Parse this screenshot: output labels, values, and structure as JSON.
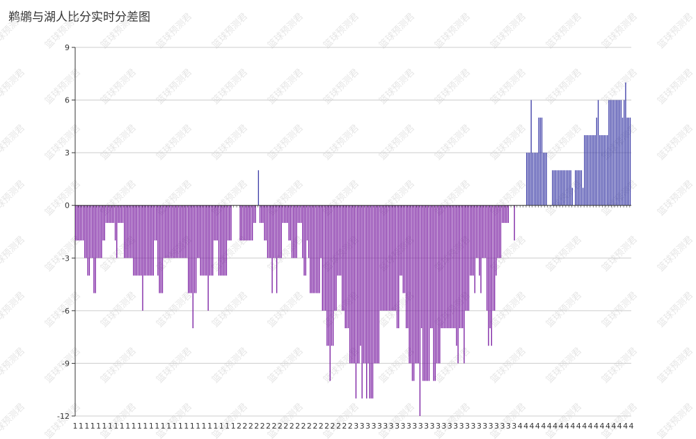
{
  "chart_data": {
    "type": "bar",
    "title": "鹈鹕与湖人比分实时分差图",
    "xlabel": "",
    "ylabel": "",
    "ylim": [
      -12,
      9
    ],
    "yticks": [
      9,
      6,
      3,
      0,
      -3,
      -6,
      -9,
      -12
    ],
    "grid": true,
    "legend": "none",
    "watermark": "篮球预测君",
    "colors": {
      "negative": "#7b1fa2",
      "positive": "#3f3fa8",
      "grid": "#cccccc",
      "axis": "#333333"
    },
    "xticks": [
      "1",
      "1",
      "1",
      "1",
      "1",
      "1",
      "1",
      "1",
      "1",
      "1",
      "1",
      "1",
      "1",
      "1",
      "1",
      "1",
      "1",
      "1",
      "1",
      "1",
      "1",
      "1",
      "1",
      "1",
      "1",
      "1",
      "1",
      "1",
      "2",
      "2",
      "2",
      "2",
      "2",
      "2",
      "2",
      "2",
      "2",
      "2",
      "2",
      "2",
      "2",
      "2",
      "2",
      "2",
      "2",
      "2",
      "2",
      "2",
      "3",
      "3",
      "3",
      "3",
      "3",
      "3",
      "3",
      "3",
      "3",
      "3",
      "3",
      "3",
      "3",
      "3",
      "3",
      "3",
      "3",
      "3",
      "3",
      "3",
      "3",
      "3",
      "3",
      "3",
      "3",
      "3",
      "3",
      "3",
      "4",
      "4",
      "4",
      "4",
      "4",
      "4",
      "4",
      "4",
      "4",
      "4",
      "4",
      "4",
      "4",
      "4",
      "4",
      "4",
      "4",
      "4",
      "4",
      "4"
    ],
    "values": [
      -2,
      -2,
      -2,
      -2,
      -2,
      -2,
      -3,
      -3,
      -4,
      -4,
      -3,
      -3,
      -5,
      -5,
      -3,
      -3,
      -3,
      -3,
      -2,
      -2,
      -1,
      -1,
      -1,
      -1,
      -1,
      -1,
      -2,
      -3,
      -1,
      -1,
      -1,
      -1,
      -3,
      -3,
      -3,
      -3,
      -3,
      -3,
      -4,
      -4,
      -4,
      -4,
      -4,
      -4,
      -6,
      -4,
      -4,
      -4,
      -4,
      -4,
      -4,
      -4,
      -2,
      -2,
      -4,
      -5,
      -5,
      -5,
      -3,
      -3,
      -3,
      -3,
      -3,
      -3,
      -3,
      -3,
      -3,
      -3,
      -3,
      -3,
      -3,
      -3,
      -3,
      -3,
      -5,
      -5,
      -5,
      -7,
      -5,
      -5,
      -3,
      -3,
      -4,
      -4,
      -4,
      -4,
      -4,
      -6,
      -4,
      -4,
      -4,
      -2,
      -2,
      -2,
      -4,
      -4,
      -4,
      -4,
      -4,
      -4,
      -2,
      -2,
      -2,
      0,
      0,
      0,
      0,
      0,
      -2,
      -2,
      -2,
      -2,
      -2,
      -2,
      -2,
      -2,
      -2,
      -1,
      -1,
      0,
      2,
      -1,
      -1,
      -1,
      -2,
      -2,
      -3,
      -3,
      -3,
      -5,
      -3,
      -3,
      -5,
      -3,
      -3,
      -3,
      -1,
      -1,
      -1,
      -1,
      -2,
      -2,
      -3,
      -3,
      -3,
      -3,
      -1,
      -1,
      -1,
      -3,
      -4,
      -4,
      -2,
      -3,
      -5,
      -5,
      -5,
      -5,
      -5,
      -5,
      -5,
      -3,
      -6,
      -6,
      -6,
      -8,
      -8,
      -10,
      -8,
      -8,
      -6,
      -6,
      -4,
      -4,
      -4,
      -6,
      -6,
      -7,
      -7,
      -7,
      -9,
      -9,
      -9,
      -9,
      -11,
      -9,
      -9,
      -8,
      -11,
      -9,
      -9,
      -11,
      -9,
      -11,
      -11,
      -11,
      -9,
      -9,
      -9,
      -9,
      -6,
      -6,
      -6,
      -6,
      -6,
      -6,
      -6,
      -6,
      -6,
      -6,
      -6,
      -7,
      -7,
      -4,
      -4,
      -5,
      -5,
      -7,
      -7,
      -9,
      -9,
      -10,
      -10,
      -9,
      -9,
      -9,
      -12,
      -7,
      -10,
      -10,
      -10,
      -10,
      -10,
      -7,
      -7,
      -10,
      -10,
      -9,
      -9,
      -9,
      -7,
      -7,
      -7,
      -7,
      -7,
      -7,
      -7,
      -7,
      -7,
      -7,
      -8,
      -9,
      -7,
      -7,
      -7,
      -9,
      -6,
      -6,
      -6,
      -4,
      -4,
      -4,
      -5,
      -3,
      -3,
      -4,
      -5,
      -3,
      -3,
      -3,
      -6,
      -8,
      -7,
      -8,
      -6,
      -6,
      -4,
      -3,
      -3,
      -3,
      -1,
      -1,
      -1,
      -1,
      -1,
      0,
      0,
      0,
      -2,
      0,
      0,
      0,
      0,
      0,
      0,
      0,
      3,
      3,
      3,
      6,
      3,
      3,
      3,
      3,
      5,
      5,
      5,
      3,
      3,
      3,
      0,
      0,
      0,
      2,
      2,
      2,
      2,
      2,
      2,
      2,
      2,
      2,
      2,
      2,
      2,
      2,
      1,
      0,
      2,
      2,
      2,
      2,
      2,
      1,
      4,
      4,
      4,
      4,
      4,
      4,
      4,
      4,
      5,
      6,
      4,
      4,
      4,
      4,
      4,
      4,
      6,
      6,
      6,
      6,
      6,
      6,
      6,
      6,
      6,
      5,
      6,
      7,
      5,
      5,
      5
    ]
  }
}
